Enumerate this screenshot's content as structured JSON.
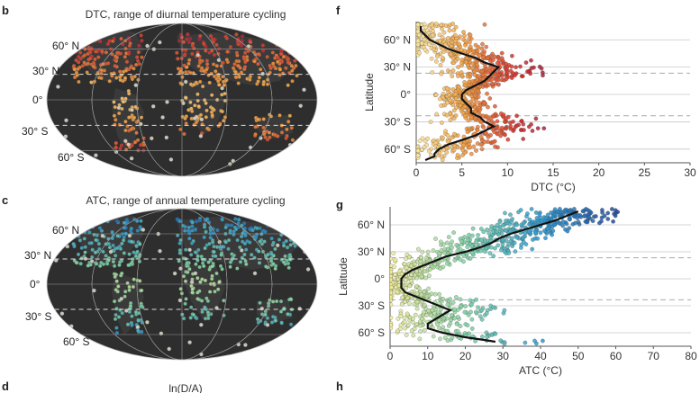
{
  "panels": {
    "b": "b",
    "c": "c",
    "d": "d",
    "f": "f",
    "g": "g",
    "h": "h"
  },
  "maps": [
    {
      "id": "dtc-map",
      "title": "DTC, range of diurnal temperature cycling",
      "lat_labels": [
        "60° N",
        "30° N",
        "0°",
        "30° S",
        "60° S"
      ],
      "colormap": [
        "#fde9a0",
        "#f5a040",
        "#d8302a",
        "#8e1a4a"
      ]
    },
    {
      "id": "atc-map",
      "title": "ATC, range of annual temperature cycling",
      "lat_labels": [
        "60° N",
        "30° N",
        "0°",
        "30° S",
        "60° S"
      ],
      "colormap": [
        "#f4ee9a",
        "#7ed3a6",
        "#2a9ad4",
        "#244a9a"
      ]
    }
  ],
  "bottom_title": "ln(D/A)",
  "chart_data": [
    {
      "type": "scatter",
      "panel": "f",
      "xlabel": "DTC (°C)",
      "ylabel": "Latitude",
      "xlim": [
        0,
        30
      ],
      "ylim": [
        -75,
        80
      ],
      "xticks": [
        0,
        5,
        10,
        15,
        20,
        25,
        30
      ],
      "xtick_labels": [
        "0",
        "5",
        "10",
        "15",
        "20",
        "25",
        "30"
      ],
      "yticks": [
        60,
        30,
        0,
        -30,
        -60
      ],
      "ytick_labels": [
        "60° N",
        "30° N",
        "0°",
        "30° S",
        "60° S"
      ],
      "tropic_lines": [
        23.4,
        -23.4
      ],
      "grid": true,
      "colormap": [
        "#fde9a0",
        "#f5a040",
        "#d8302a",
        "#8e1a4a"
      ],
      "color_range": [
        0,
        16
      ],
      "mean_line": {
        "lat": [
          -72,
          -70,
          -68,
          -65,
          -60,
          -55,
          -50,
          -45,
          -40,
          -35,
          -30,
          -25,
          -20,
          -15,
          -10,
          -5,
          0,
          5,
          10,
          15,
          20,
          25,
          30,
          35,
          40,
          45,
          50,
          55,
          60,
          65,
          70,
          75
        ],
        "value": [
          1,
          1.5,
          2,
          2,
          2.5,
          3.5,
          5,
          6.5,
          7.5,
          8.5,
          7.5,
          7,
          6,
          6,
          5.5,
          5,
          5,
          5.5,
          6.5,
          7.5,
          8,
          8.5,
          9,
          7.5,
          6.5,
          5,
          3.5,
          2.5,
          1.5,
          1,
          0.5,
          0.5
        ]
      }
    },
    {
      "type": "scatter",
      "panel": "g",
      "xlabel": "ATC (°C)",
      "ylabel": "Latitude",
      "xlim": [
        0,
        80
      ],
      "ylim": [
        -75,
        80
      ],
      "xticks": [
        0,
        10,
        20,
        30,
        40,
        50,
        60,
        70,
        80
      ],
      "xtick_labels": [
        "0",
        "10",
        "20",
        "30",
        "40",
        "50",
        "60",
        "70",
        "80"
      ],
      "yticks": [
        60,
        30,
        0,
        -30,
        -60
      ],
      "ytick_labels": [
        "60° N",
        "30° N",
        "0°",
        "30° S",
        "60° S"
      ],
      "tropic_lines": [
        23.4,
        -23.4
      ],
      "grid": true,
      "colormap": [
        "#f4ee9a",
        "#7ed3a6",
        "#2a9ad4",
        "#244a9a"
      ],
      "color_range": [
        0,
        60
      ],
      "mean_line": {
        "lat": [
          -70,
          -68,
          -65,
          -60,
          -55,
          -50,
          -45,
          -40,
          -35,
          -30,
          -25,
          -20,
          -15,
          -10,
          -5,
          0,
          5,
          10,
          15,
          20,
          25,
          30,
          35,
          40,
          45,
          50,
          55,
          60,
          65,
          70,
          75
        ],
        "value": [
          28,
          25,
          20,
          14,
          10,
          10,
          12,
          14,
          16,
          13,
          10,
          7,
          4,
          3,
          3,
          3,
          4,
          6,
          9,
          12,
          15,
          20,
          24,
          27,
          29,
          32,
          36,
          40,
          44,
          47,
          50
        ]
      }
    }
  ]
}
